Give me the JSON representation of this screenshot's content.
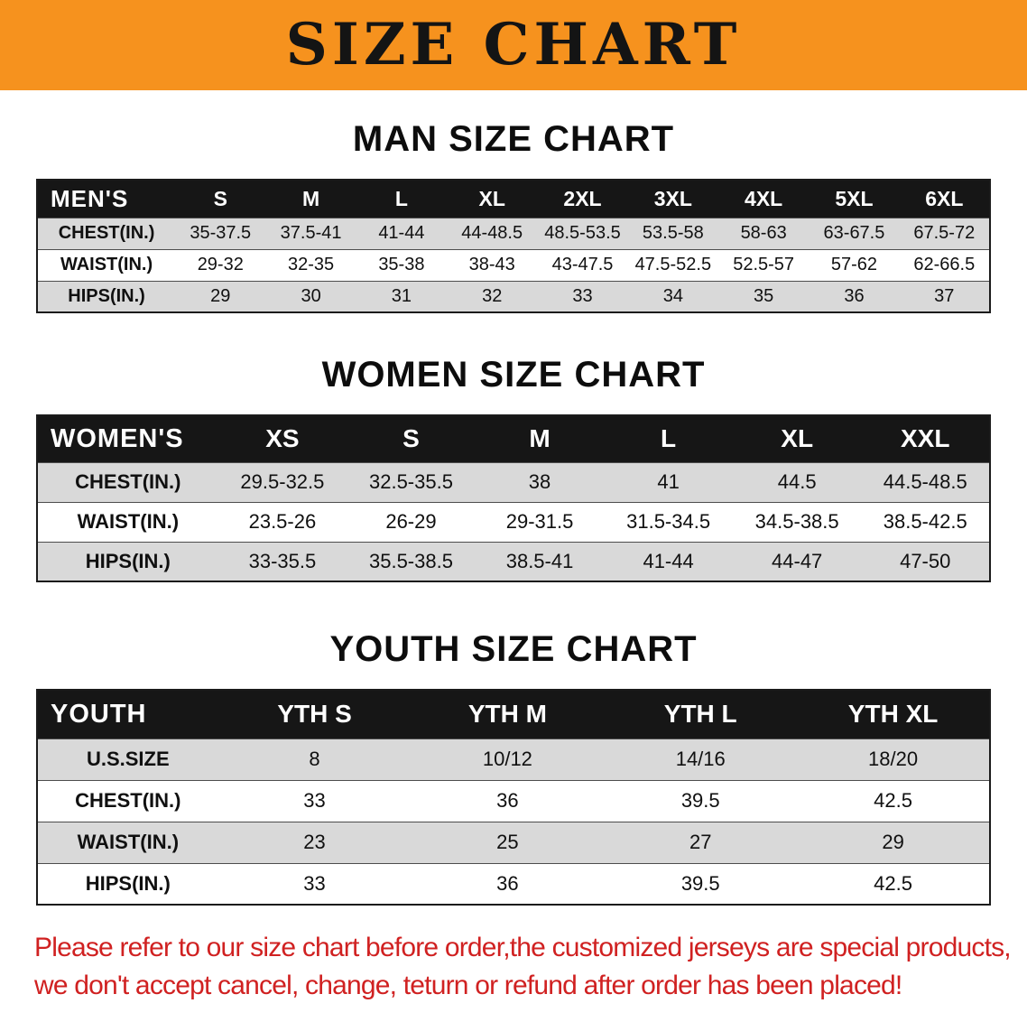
{
  "banner": {
    "title": "SIZE CHART",
    "bg_color": "#F6921E",
    "text_color": "#141414"
  },
  "sections": [
    {
      "id": "men",
      "heading": "MAN SIZE CHART",
      "table": {
        "header": [
          "MEN'S",
          "S",
          "M",
          "L",
          "XL",
          "2XL",
          "3XL",
          "4XL",
          "5XL",
          "6XL"
        ],
        "rows": [
          [
            "CHEST(IN.)",
            "35-37.5",
            "37.5-41",
            "41-44",
            "44-48.5",
            "48.5-53.5",
            "53.5-58",
            "58-63",
            "63-67.5",
            "67.5-72"
          ],
          [
            "WAIST(IN.)",
            "29-32",
            "32-35",
            "35-38",
            "38-43",
            "43-47.5",
            "47.5-52.5",
            "52.5-57",
            "57-62",
            "62-66.5"
          ],
          [
            "HIPS(IN.)",
            "29",
            "30",
            "31",
            "32",
            "33",
            "34",
            "35",
            "36",
            "37"
          ]
        ]
      }
    },
    {
      "id": "women",
      "heading": "WOMEN SIZE CHART",
      "table": {
        "header": [
          "WOMEN'S",
          "XS",
          "S",
          "M",
          "L",
          "XL",
          "XXL"
        ],
        "rows": [
          [
            "CHEST(IN.)",
            "29.5-32.5",
            "32.5-35.5",
            "38",
            "41",
            "44.5",
            "44.5-48.5"
          ],
          [
            "WAIST(IN.)",
            "23.5-26",
            "26-29",
            "29-31.5",
            "31.5-34.5",
            "34.5-38.5",
            "38.5-42.5"
          ],
          [
            "HIPS(IN.)",
            "33-35.5",
            "35.5-38.5",
            "38.5-41",
            "41-44",
            "44-47",
            "47-50"
          ]
        ]
      }
    },
    {
      "id": "youth",
      "heading": "YOUTH SIZE CHART",
      "table": {
        "header": [
          "YOUTH",
          "YTH S",
          "YTH M",
          "YTH L",
          "YTH XL"
        ],
        "rows": [
          [
            "U.S.SIZE",
            "8",
            "10/12",
            "14/16",
            "18/20"
          ],
          [
            "CHEST(IN.)",
            "33",
            "36",
            "39.5",
            "42.5"
          ],
          [
            "WAIST(IN.)",
            "23",
            "25",
            "27",
            "29"
          ],
          [
            "HIPS(IN.)",
            "33",
            "36",
            "39.5",
            "42.5"
          ]
        ]
      }
    }
  ],
  "disclaimer": {
    "line1": "Please refer to our size chart before order,the customized jerseys are special products,",
    "line2": "we don't accept cancel, change, teturn or refund after order has been placed!",
    "text_color": "#D02121"
  },
  "colors": {
    "table_header_bg": "#161616",
    "table_header_text": "#FFFFFF",
    "row_stripe": "#D9D9D9",
    "row_alt": "#FFFFFF"
  }
}
